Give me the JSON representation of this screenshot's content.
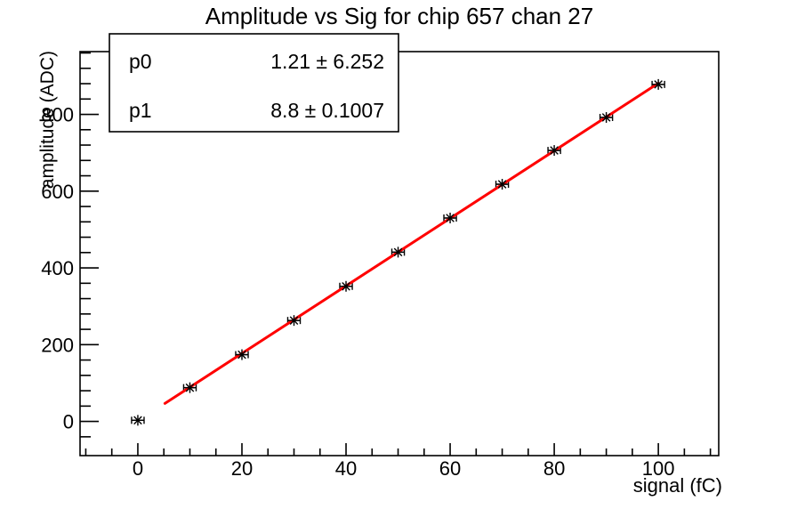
{
  "chart_data": {
    "type": "scatter",
    "title": "Amplitude vs Sig for chip 657 chan 27",
    "xlabel": "signal (fC)",
    "ylabel": "amplitude (ADC)",
    "xlim": [
      -11.1,
      111.6
    ],
    "ylim": [
      -89,
      963.5
    ],
    "grid": false,
    "x": [
      0,
      10,
      20,
      30,
      40,
      50,
      60,
      70,
      80,
      90,
      100
    ],
    "y": [
      3,
      88,
      174,
      263,
      352,
      441,
      530,
      618,
      706,
      792,
      878
    ],
    "xerr": 1.2,
    "x_axis": {
      "majors": [
        0,
        20,
        40,
        60,
        80,
        100
      ],
      "major_labels": [
        "0",
        "20",
        "40",
        "60",
        "80",
        "100"
      ],
      "minor_start": -10,
      "minor_end": 110,
      "minor_step": 5
    },
    "y_axis": {
      "majors": [
        0,
        200,
        400,
        600,
        800
      ],
      "major_labels": [
        "0",
        "200",
        "400",
        "600",
        "800"
      ],
      "minor_start": -40,
      "minor_end": 960,
      "minor_step": 40
    },
    "fit": {
      "p0": 1.21,
      "p1": 8.8,
      "x_start": 5.2,
      "x_end": 100,
      "color": "#ff0000",
      "line_width": 3
    },
    "marker": {
      "style": "star",
      "color": "#000000"
    },
    "axis_color": "#000000",
    "stats": {
      "rows": [
        {
          "name": "p0",
          "value": "1.21 ± 6.252"
        },
        {
          "name": "p1",
          "value": "8.8 ± 0.1007"
        }
      ]
    }
  }
}
